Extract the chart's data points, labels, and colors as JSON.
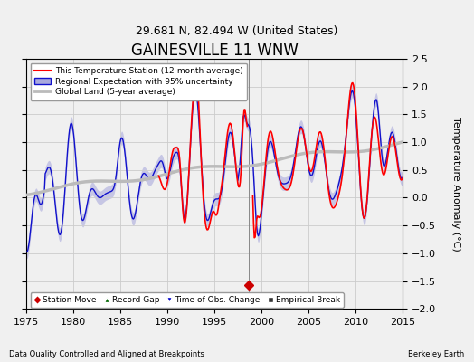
{
  "title": "GAINESVILLE 11 WNW",
  "subtitle": "29.681 N, 82.494 W (United States)",
  "ylabel": "Temperature Anomaly (°C)",
  "xlabel_left": "Data Quality Controlled and Aligned at Breakpoints",
  "xlabel_right": "Berkeley Earth",
  "xlim": [
    1975,
    2015
  ],
  "ylim": [
    -2.0,
    2.5
  ],
  "yticks": [
    -2,
    -1.5,
    -1,
    -0.5,
    0,
    0.5,
    1,
    1.5,
    2,
    2.5
  ],
  "xticks": [
    1975,
    1980,
    1985,
    1990,
    1995,
    2000,
    2005,
    2010,
    2015
  ],
  "station_color": "#FF0000",
  "regional_color": "#1111CC",
  "regional_fill_color": "#AAAADD",
  "global_color": "#BBBBBB",
  "background_color": "#F0F0F0",
  "grid_color": "#CCCCCC",
  "vertical_line_x": 1998.6,
  "station_move_x": 1998.6,
  "station_move_y": -1.58,
  "title_fontsize": 12,
  "subtitle_fontsize": 9,
  "tick_fontsize": 8,
  "label_fontsize": 8
}
